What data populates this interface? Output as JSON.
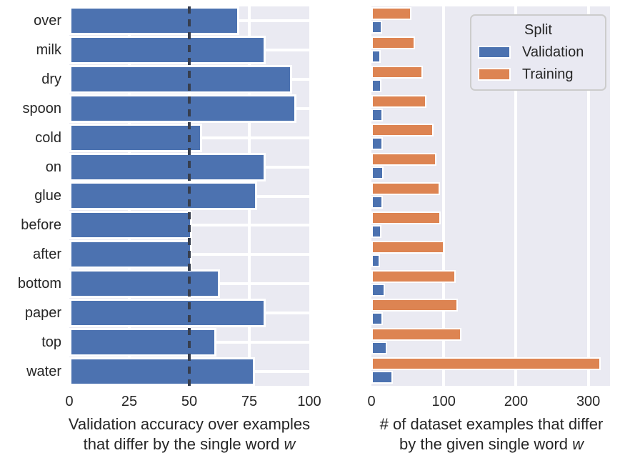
{
  "figure": {
    "background": "#ffffff",
    "plot_background": "#eaeaf2",
    "grid_color": "#ffffff",
    "text_color": "#262626"
  },
  "chart_data": [
    {
      "type": "bar",
      "orientation": "horizontal",
      "categories": [
        "over",
        "milk",
        "dry",
        "spoon",
        "cold",
        "on",
        "glue",
        "before",
        "after",
        "bottom",
        "paper",
        "top",
        "water"
      ],
      "values": [
        69,
        80,
        91,
        93,
        53.5,
        80,
        76.5,
        49.5,
        49.5,
        61,
        80,
        59.5,
        75.5
      ],
      "bar_color": "#4c72b0",
      "xlim": [
        0,
        100
      ],
      "xticks": [
        0,
        25,
        50,
        75,
        100
      ],
      "xtick_labels": [
        "0",
        "25",
        "50",
        "75",
        "100"
      ],
      "grid": "both",
      "reference_line": {
        "x": 50,
        "style": "dashed",
        "color": "#373e4d"
      },
      "xlabel_line1": "Validation accuracy over examples",
      "xlabel_line2": "that differ by the single word ",
      "xlabel_italic": "w"
    },
    {
      "type": "bar",
      "orientation": "horizontal",
      "categories": [
        "over",
        "milk",
        "dry",
        "spoon",
        "cold",
        "on",
        "glue",
        "before",
        "after",
        "bottom",
        "paper",
        "top",
        "water"
      ],
      "series": [
        {
          "name": "Validation",
          "color": "#4c72b0",
          "row": "bottom",
          "values": [
            11,
            9,
            10,
            12,
            12,
            13,
            12,
            10,
            8,
            15,
            12,
            18,
            26
          ]
        },
        {
          "name": "Training",
          "color": "#dd8452",
          "row": "top",
          "values": [
            51,
            56,
            67,
            72,
            82,
            86,
            91,
            92,
            97,
            113,
            116,
            121,
            313
          ]
        }
      ],
      "xlim": [
        0,
        330
      ],
      "xticks": [
        0,
        100,
        200,
        300
      ],
      "xtick_labels": [
        "0",
        "100",
        "200",
        "300"
      ],
      "grid": "x",
      "legend": {
        "title": "Split",
        "entries": [
          {
            "label": "Validation",
            "color": "#4c72b0"
          },
          {
            "label": "Training",
            "color": "#dd8452"
          }
        ]
      },
      "xlabel_line1": "# of dataset examples that differ",
      "xlabel_line2": "by the given single word ",
      "xlabel_italic": "w"
    }
  ]
}
